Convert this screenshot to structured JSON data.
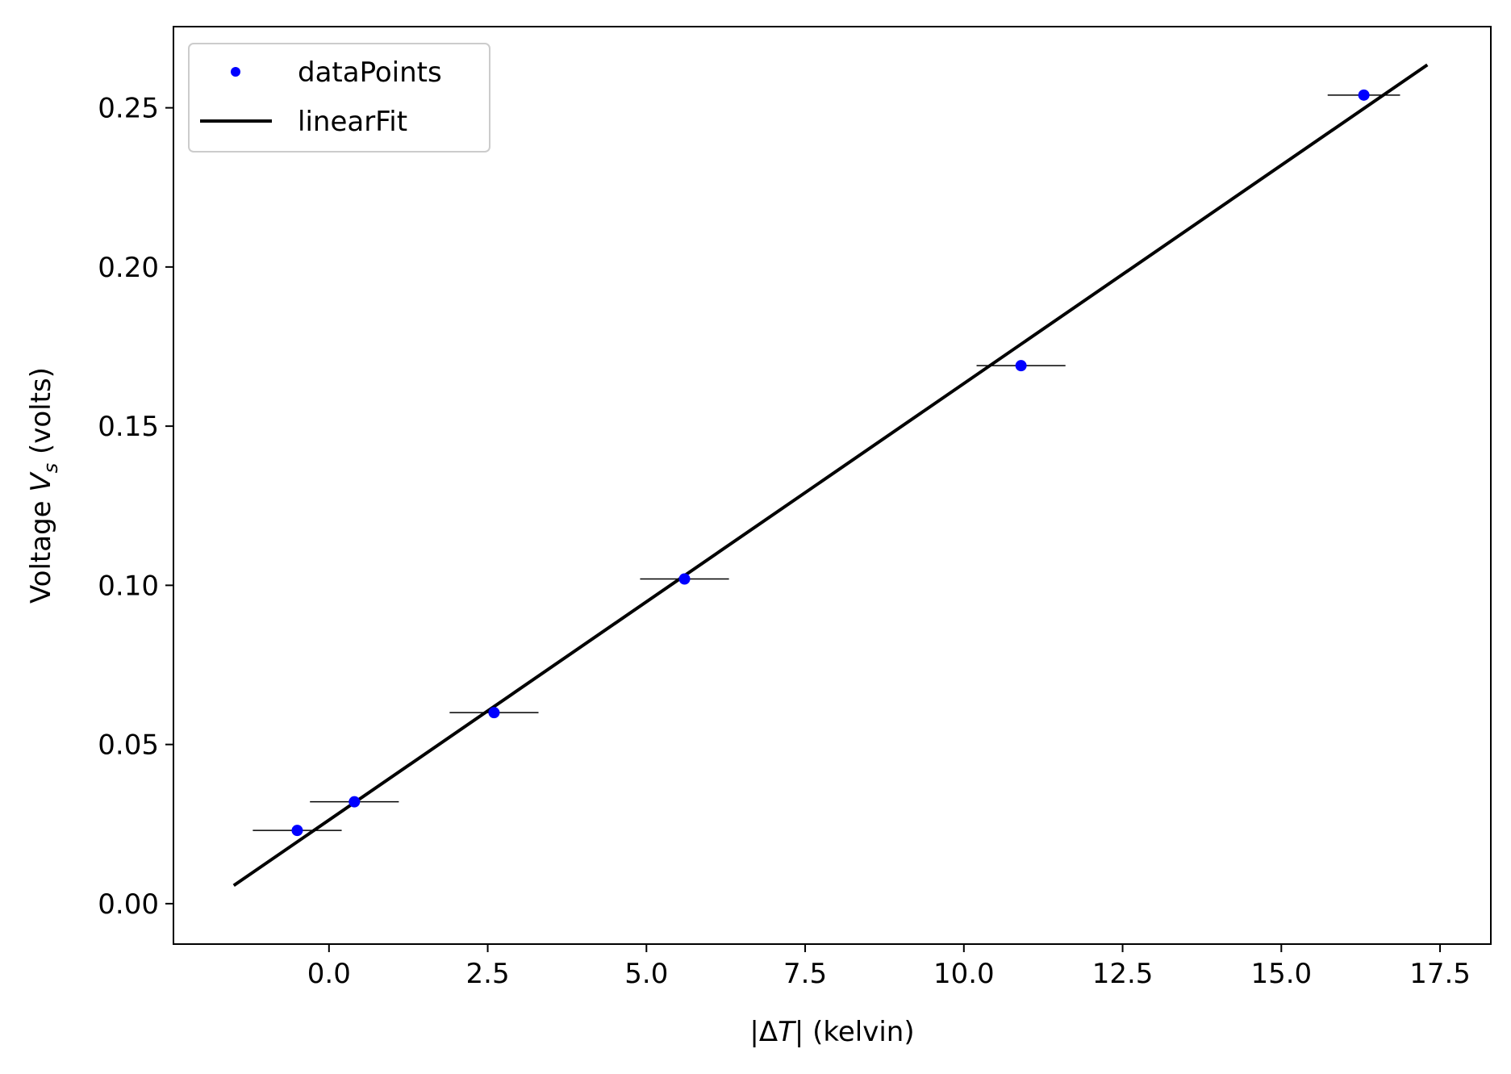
{
  "chart_data": {
    "type": "scatter",
    "xlabel_parts": {
      "pre": "|Δ",
      "var": "T",
      "post": "| (kelvin)"
    },
    "ylabel_parts": {
      "pre": "Voltage ",
      "var": "V",
      "sub": "s",
      "post": " (volts)"
    },
    "xlim": [
      -2.45,
      18.3
    ],
    "ylim": [
      -0.0127,
      0.2755
    ],
    "x_ticks": [
      0.0,
      2.5,
      5.0,
      7.5,
      10.0,
      12.5,
      15.0,
      17.5
    ],
    "x_tick_labels": [
      "0.0",
      "2.5",
      "5.0",
      "7.5",
      "10.0",
      "12.5",
      "15.0",
      "17.5"
    ],
    "y_ticks": [
      0.0,
      0.05,
      0.1,
      0.15,
      0.2,
      0.25
    ],
    "y_tick_labels": [
      "0.00",
      "0.05",
      "0.10",
      "0.15",
      "0.20",
      "0.25"
    ],
    "grid": false,
    "legend_position": "upper-left",
    "series": [
      {
        "name": "dataPoints",
        "kind": "points",
        "color": "#0000ff",
        "x": [
          -0.5,
          0.4,
          2.6,
          5.6,
          10.9,
          16.3
        ],
        "y": [
          0.023,
          0.032,
          0.06,
          0.102,
          0.169,
          0.254
        ],
        "x_err": [
          0.7,
          0.7,
          0.7,
          0.7,
          0.7,
          0.57
        ],
        "errorbar_color": "#000000"
      },
      {
        "name": "linearFit",
        "kind": "line",
        "color": "#000000",
        "x": [
          -1.5,
          17.3
        ],
        "y": [
          0.0057,
          0.2635
        ]
      }
    ]
  }
}
